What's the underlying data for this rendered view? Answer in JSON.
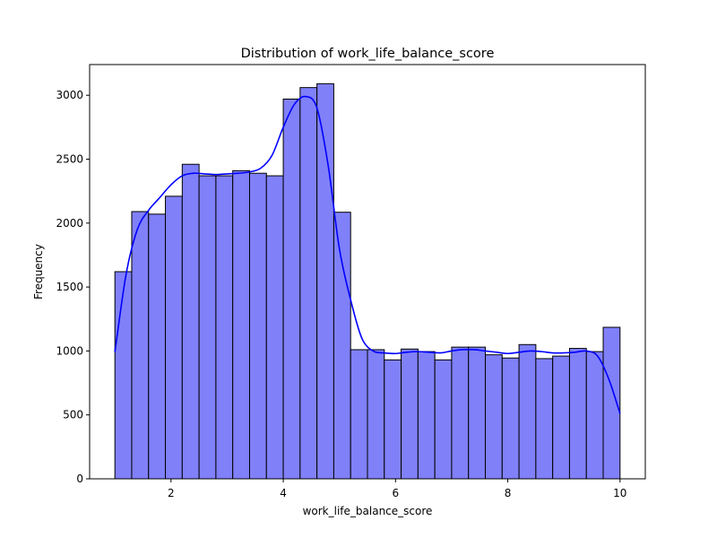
{
  "chart_data": {
    "type": "bar",
    "title": "Distribution of work_life_balance_score",
    "xlabel": "work_life_balance_score",
    "ylabel": "Frequency",
    "xlim": [
      0.55,
      10.45
    ],
    "ylim": [
      0,
      3240
    ],
    "xticks": [
      2,
      4,
      6,
      8,
      10
    ],
    "yticks": [
      0,
      500,
      1000,
      1500,
      2000,
      2500,
      3000
    ],
    "grid": false,
    "bin_start": 1.0,
    "bin_width": 0.3,
    "values": [
      1620,
      2090,
      2070,
      2210,
      2460,
      2370,
      2370,
      2410,
      2390,
      2370,
      2970,
      3060,
      3090,
      2085,
      1010,
      1010,
      930,
      1015,
      995,
      930,
      1030,
      1030,
      970,
      945,
      1050,
      940,
      960,
      1020,
      995,
      1185
    ],
    "bar_color": "#8080f9",
    "bar_edge_color": "#000000",
    "kde": {
      "color": "#0000ff",
      "x": [
        1.0,
        1.2,
        1.4,
        1.6,
        1.8,
        2.0,
        2.2,
        2.4,
        2.6,
        2.8,
        3.0,
        3.2,
        3.4,
        3.6,
        3.8,
        4.0,
        4.2,
        4.4,
        4.6,
        4.8,
        5.0,
        5.2,
        5.4,
        5.6,
        5.8,
        6.0,
        6.2,
        6.4,
        6.6,
        6.8,
        7.0,
        7.2,
        7.4,
        7.6,
        7.8,
        8.0,
        8.2,
        8.4,
        8.6,
        8.8,
        9.0,
        9.2,
        9.4,
        9.6,
        9.8,
        10.0
      ],
      "y": [
        990,
        1600,
        1950,
        2100,
        2200,
        2300,
        2370,
        2390,
        2385,
        2380,
        2385,
        2390,
        2400,
        2430,
        2530,
        2750,
        2930,
        2990,
        2900,
        2450,
        1800,
        1400,
        1100,
        1000,
        985,
        980,
        990,
        995,
        990,
        985,
        1000,
        1010,
        1010,
        1000,
        990,
        980,
        990,
        1000,
        995,
        985,
        985,
        990,
        1000,
        960,
        780,
        510
      ]
    }
  }
}
